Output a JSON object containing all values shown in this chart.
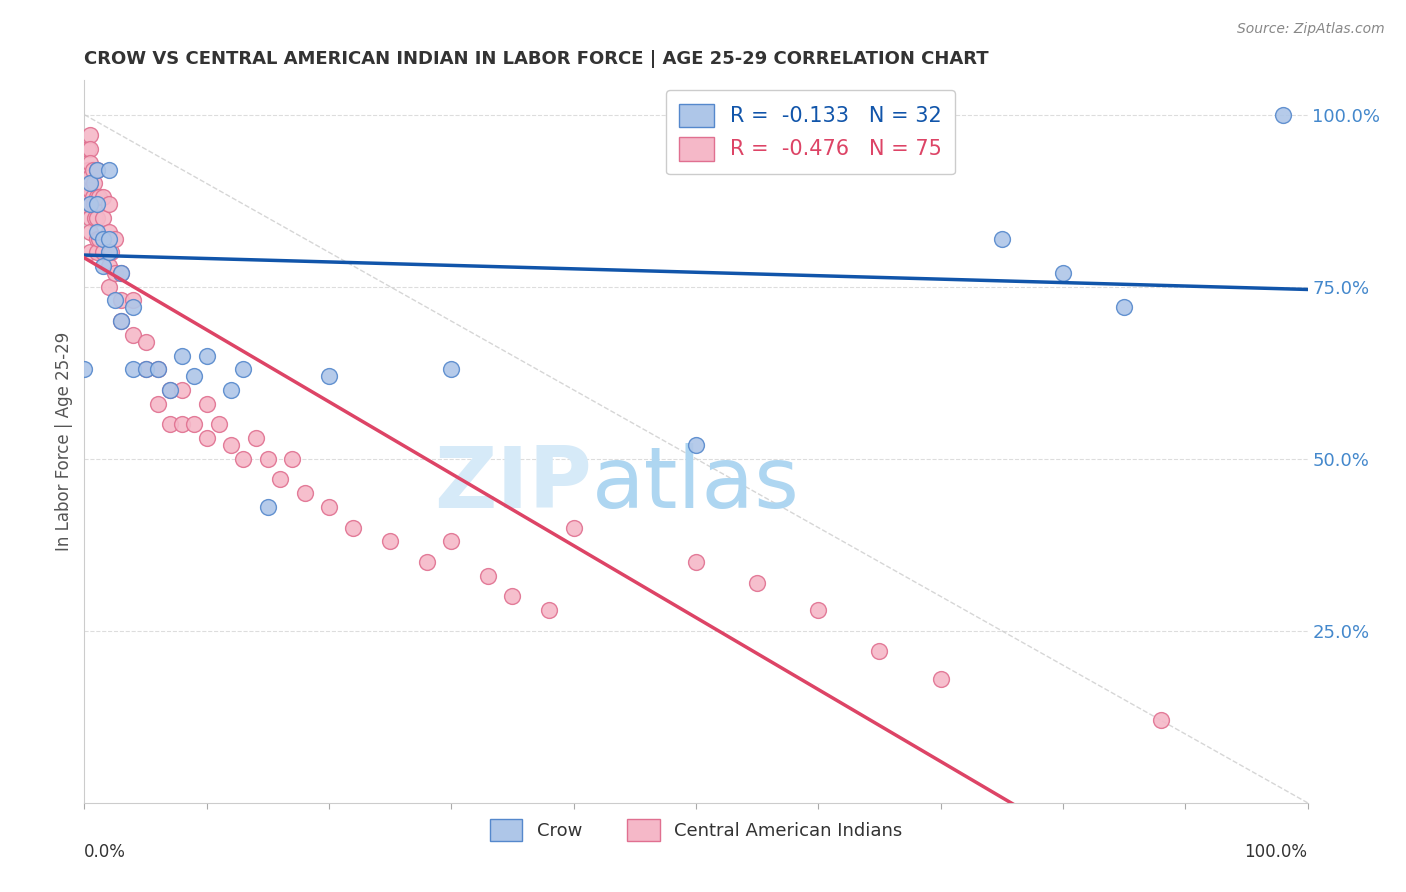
{
  "title": "CROW VS CENTRAL AMERICAN INDIAN IN LABOR FORCE | AGE 25-29 CORRELATION CHART",
  "source": "Source: ZipAtlas.com",
  "ylabel": "In Labor Force | Age 25-29",
  "ytick_labels": [
    "100.0%",
    "75.0%",
    "50.0%",
    "25.0%"
  ],
  "ytick_values": [
    1.0,
    0.75,
    0.5,
    0.25
  ],
  "legend_label1": "R =  -0.133   N = 32",
  "legend_label2": "R =  -0.476   N = 75",
  "bottom_legend_1": "Crow",
  "bottom_legend_2": "Central American Indians",
  "crow_color": "#aec6e8",
  "crow_edge_color": "#5588cc",
  "cai_color": "#f5b8c8",
  "cai_edge_color": "#e07090",
  "crow_line_color": "#1155aa",
  "cai_line_color": "#dd4466",
  "diagonal_color": "#cccccc",
  "crow_x": [
    0.0,
    0.005,
    0.005,
    0.01,
    0.01,
    0.01,
    0.015,
    0.015,
    0.02,
    0.02,
    0.02,
    0.025,
    0.03,
    0.03,
    0.04,
    0.04,
    0.05,
    0.06,
    0.07,
    0.08,
    0.09,
    0.1,
    0.12,
    0.13,
    0.15,
    0.2,
    0.3,
    0.5,
    0.75,
    0.8,
    0.85,
    0.98
  ],
  "crow_y": [
    0.63,
    0.87,
    0.9,
    0.87,
    0.83,
    0.92,
    0.78,
    0.82,
    0.8,
    0.82,
    0.92,
    0.73,
    0.77,
    0.7,
    0.63,
    0.72,
    0.63,
    0.63,
    0.6,
    0.65,
    0.62,
    0.65,
    0.6,
    0.63,
    0.43,
    0.62,
    0.63,
    0.52,
    0.82,
    0.77,
    0.72,
    1.0
  ],
  "cai_x": [
    0.0,
    0.003,
    0.003,
    0.004,
    0.004,
    0.005,
    0.005,
    0.005,
    0.005,
    0.005,
    0.005,
    0.005,
    0.005,
    0.005,
    0.007,
    0.007,
    0.008,
    0.008,
    0.009,
    0.01,
    0.01,
    0.01,
    0.01,
    0.01,
    0.012,
    0.012,
    0.015,
    0.015,
    0.015,
    0.02,
    0.02,
    0.02,
    0.02,
    0.022,
    0.025,
    0.025,
    0.03,
    0.03,
    0.03,
    0.04,
    0.04,
    0.05,
    0.05,
    0.06,
    0.06,
    0.07,
    0.07,
    0.08,
    0.08,
    0.09,
    0.1,
    0.1,
    0.11,
    0.12,
    0.13,
    0.14,
    0.15,
    0.16,
    0.17,
    0.18,
    0.2,
    0.22,
    0.25,
    0.28,
    0.3,
    0.33,
    0.35,
    0.38,
    0.4,
    0.5,
    0.55,
    0.6,
    0.65,
    0.7,
    0.88
  ],
  "cai_y": [
    0.87,
    0.95,
    0.92,
    0.9,
    0.88,
    0.97,
    0.95,
    0.93,
    0.91,
    0.89,
    0.87,
    0.85,
    0.83,
    0.8,
    0.92,
    0.88,
    0.9,
    0.87,
    0.85,
    0.92,
    0.88,
    0.85,
    0.82,
    0.8,
    0.88,
    0.82,
    0.88,
    0.85,
    0.8,
    0.87,
    0.83,
    0.78,
    0.75,
    0.8,
    0.82,
    0.77,
    0.77,
    0.73,
    0.7,
    0.73,
    0.68,
    0.67,
    0.63,
    0.63,
    0.58,
    0.6,
    0.55,
    0.6,
    0.55,
    0.55,
    0.58,
    0.53,
    0.55,
    0.52,
    0.5,
    0.53,
    0.5,
    0.47,
    0.5,
    0.45,
    0.43,
    0.4,
    0.38,
    0.35,
    0.38,
    0.33,
    0.3,
    0.28,
    0.4,
    0.35,
    0.32,
    0.28,
    0.22,
    0.18,
    0.12
  ],
  "crow_trendline": [
    0.796,
    0.746
  ],
  "cai_trendline": [
    0.82,
    -0.02
  ],
  "watermark_zip": "ZIP",
  "watermark_atlas": "atlas",
  "background_color": "#ffffff",
  "xlim": [
    0.0,
    1.0
  ],
  "ylim": [
    0.0,
    1.05
  ],
  "grid_color": "#dddddd"
}
